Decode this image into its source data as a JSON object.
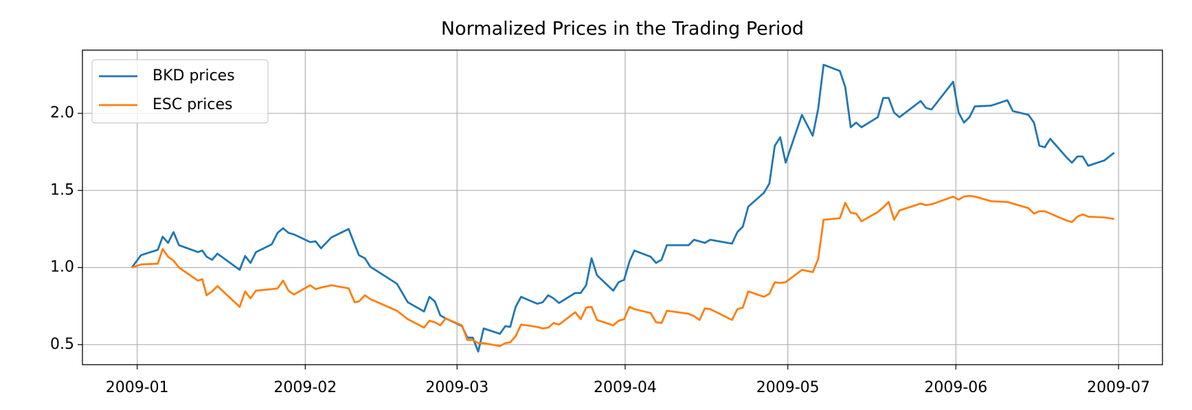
{
  "chart_data": {
    "type": "line",
    "title": "Normalized Prices in the Trading Period",
    "x": [
      -1,
      0.7,
      3.8,
      4.7,
      5.7,
      6.7,
      7.7,
      11.2,
      12,
      12.8,
      13.8,
      14.8,
      18.9,
      19.9,
      20.9,
      21.9,
      24.8,
      25.9,
      26.9,
      27.9,
      28.9,
      31.9,
      32.9,
      33.9,
      35.8,
      39,
      40.1,
      40.9,
      42,
      43,
      47.9,
      49.9,
      52.9,
      53.9,
      54.9,
      55.9,
      56.9,
      59.9,
      60.9,
      61.9,
      62.9,
      63.9,
      66.9,
      67.9,
      68.8,
      69.8,
      70.8,
      73.8,
      74.8,
      75.8,
      76.8,
      77.8,
      80.8,
      81.8,
      82.8,
      83.8,
      84.8,
      87.8,
      88.8,
      89.8,
      90.8,
      91.7,
      94.7,
      95.7,
      96.7,
      97.7,
      101.7,
      102.7,
      103.7,
      104.7,
      105.7,
      109.7,
      110.7,
      111.7,
      112.7,
      115.6,
      116.6,
      117.6,
      118.6,
      119.6,
      122.6,
      124.6,
      125.6,
      126.6,
      129.6,
      130.6,
      131.6,
      132.6,
      133.6,
      136.6,
      137.6,
      138.6,
      139.6,
      140.6,
      144.5,
      145.5,
      146.5,
      150.5,
      151.5,
      152.5,
      153.5,
      154.5,
      157.5,
      160.5,
      161.5,
      164.4,
      165.4,
      166.4,
      167.4,
      168.4,
      171.4,
      172.4,
      173.4,
      174.4,
      175.4,
      178.4,
      180.2
    ],
    "series": [
      {
        "name": "BKD prices",
        "color": "#1f77b4",
        "values": [
          1.0,
          1.08,
          1.115,
          1.2,
          1.16,
          1.23,
          1.145,
          1.1,
          1.11,
          1.07,
          1.05,
          1.09,
          0.985,
          1.075,
          1.03,
          1.1,
          1.15,
          1.225,
          1.255,
          1.225,
          1.215,
          1.165,
          1.17,
          1.125,
          1.195,
          1.25,
          1.15,
          1.08,
          1.06,
          1.005,
          0.895,
          0.775,
          0.715,
          0.81,
          0.78,
          0.69,
          0.67,
          0.62,
          0.545,
          0.545,
          0.455,
          0.605,
          0.57,
          0.62,
          0.615,
          0.745,
          0.81,
          0.765,
          0.775,
          0.82,
          0.8,
          0.77,
          0.835,
          0.835,
          0.885,
          1.06,
          0.95,
          0.85,
          0.905,
          0.92,
          1.04,
          1.11,
          1.07,
          1.03,
          1.05,
          1.145,
          1.145,
          1.18,
          1.17,
          1.16,
          1.18,
          1.155,
          1.23,
          1.265,
          1.395,
          1.485,
          1.545,
          1.79,
          1.845,
          1.68,
          1.99,
          1.855,
          2.03,
          2.315,
          2.275,
          2.17,
          1.91,
          1.94,
          1.91,
          1.975,
          2.1,
          2.1,
          2.005,
          1.975,
          2.08,
          2.035,
          2.025,
          2.205,
          2.005,
          1.94,
          1.975,
          2.045,
          2.05,
          2.085,
          2.015,
          1.99,
          1.94,
          1.79,
          1.78,
          1.835,
          1.715,
          1.68,
          1.72,
          1.72,
          1.66,
          1.695,
          1.745
        ]
      },
      {
        "name": "ESC prices",
        "color": "#ff7f0e",
        "values": [
          1.0,
          1.02,
          1.025,
          1.12,
          1.07,
          1.045,
          1.0,
          0.915,
          0.925,
          0.82,
          0.845,
          0.88,
          0.745,
          0.845,
          0.8,
          0.85,
          0.86,
          0.865,
          0.915,
          0.85,
          0.825,
          0.885,
          0.86,
          0.87,
          0.885,
          0.865,
          0.775,
          0.78,
          0.82,
          0.795,
          0.72,
          0.665,
          0.61,
          0.655,
          0.645,
          0.625,
          0.67,
          0.625,
          0.53,
          0.53,
          0.51,
          0.51,
          0.49,
          0.51,
          0.515,
          0.555,
          0.63,
          0.615,
          0.605,
          0.61,
          0.64,
          0.63,
          0.71,
          0.665,
          0.74,
          0.745,
          0.66,
          0.625,
          0.655,
          0.665,
          0.745,
          0.73,
          0.705,
          0.645,
          0.64,
          0.72,
          0.7,
          0.685,
          0.66,
          0.735,
          0.73,
          0.66,
          0.73,
          0.74,
          0.845,
          0.81,
          0.83,
          0.905,
          0.9,
          0.905,
          0.985,
          0.97,
          1.055,
          1.31,
          1.32,
          1.42,
          1.355,
          1.35,
          1.3,
          1.36,
          1.39,
          1.425,
          1.31,
          1.37,
          1.415,
          1.405,
          1.41,
          1.46,
          1.44,
          1.46,
          1.465,
          1.46,
          1.43,
          1.425,
          1.415,
          1.385,
          1.35,
          1.365,
          1.365,
          1.35,
          1.305,
          1.295,
          1.33,
          1.345,
          1.33,
          1.325,
          1.315
        ]
      }
    ],
    "xlim": [
      -10.1,
      189.1
    ],
    "xticks": [
      {
        "value": 0,
        "label": "2009-01"
      },
      {
        "value": 31,
        "label": "2009-02"
      },
      {
        "value": 59,
        "label": "2009-03"
      },
      {
        "value": 90,
        "label": "2009-04"
      },
      {
        "value": 120,
        "label": "2009-05"
      },
      {
        "value": 151,
        "label": "2009-06"
      },
      {
        "value": 181,
        "label": "2009-07"
      }
    ],
    "ylim": [
      0.37,
      2.41
    ],
    "yticks": [
      0.5,
      {
        "value": 1,
        "label": "1.0"
      },
      1.5,
      {
        "value": 2,
        "label": "2.0"
      }
    ],
    "grid": true,
    "legend": "upper left"
  }
}
